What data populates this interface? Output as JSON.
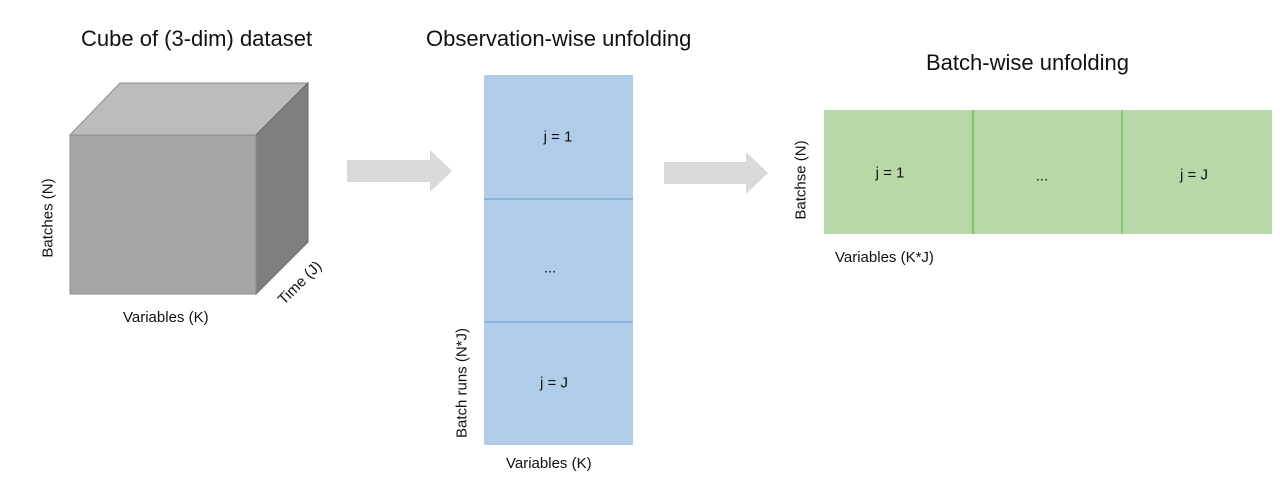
{
  "cube_section": {
    "title": "Cube of (3-dim) dataset",
    "y_label": "Batches (N)",
    "x_label": "Variables (K)",
    "z_label": "Time (J)"
  },
  "observation_section": {
    "title": "Observation-wise unfolding",
    "cells": [
      "j = 1",
      "...",
      "j = J"
    ],
    "y_label": "Batch runs (N*J)",
    "x_label": "Variables (K)",
    "color": "#afcde9"
  },
  "batch_section": {
    "title": "Batch-wise unfolding",
    "cells": [
      "j = 1",
      "...",
      "j = J"
    ],
    "y_label": "Batchse (N)",
    "x_label": "Variables (K*J)",
    "color": "#b9d8a7"
  },
  "colors": {
    "cube_front": "#a6a6a6",
    "cube_top": "#bcbcbc",
    "cube_side": "#7f7f7f",
    "arrow": "#d9d9d9"
  }
}
